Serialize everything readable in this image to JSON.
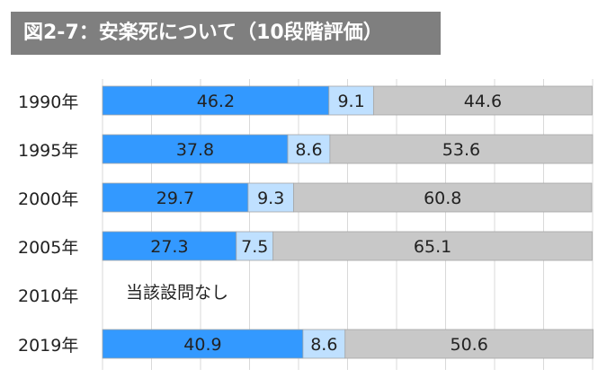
{
  "title": "図2-7：安楽死について（10段階評価）",
  "chart_data": {
    "type": "bar",
    "orientation": "horizontal",
    "stacked": true,
    "categories": [
      "1990年",
      "1995年",
      "2000年",
      "2005年",
      "2010年",
      "2019年"
    ],
    "series": [
      {
        "values": [
          46.2,
          37.8,
          29.7,
          27.3,
          null,
          40.9
        ],
        "color": "#3399ff"
      },
      {
        "values": [
          9.1,
          8.6,
          9.3,
          7.5,
          null,
          8.6
        ],
        "color": "#bfe0ff"
      },
      {
        "values": [
          44.6,
          53.6,
          60.8,
          65.1,
          null,
          50.6
        ],
        "color": "#c8c8c8"
      }
    ],
    "annotations": [
      {
        "category": "2010年",
        "text": "当該設問なし"
      }
    ],
    "xlim": [
      0,
      100
    ],
    "grid": true,
    "legend": "none"
  }
}
